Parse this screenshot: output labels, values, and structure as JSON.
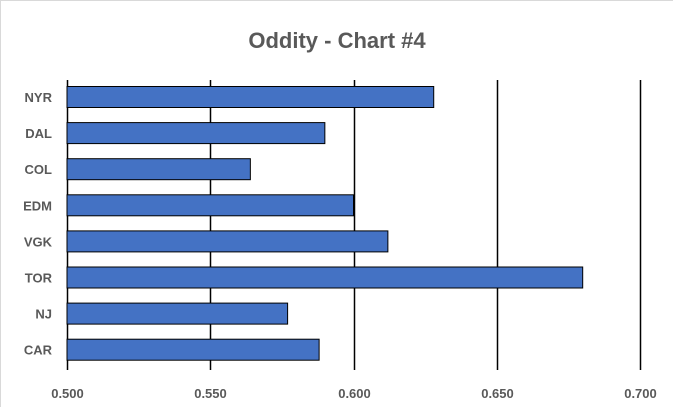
{
  "chart_data": {
    "type": "bar",
    "orientation": "horizontal",
    "title": "Oddity - Chart #4",
    "categories": [
      "NYR",
      "DAL",
      "COL",
      "EDM",
      "VGK",
      "TOR",
      "NJ",
      "CAR"
    ],
    "values": [
      0.628,
      0.59,
      0.564,
      0.6,
      0.612,
      0.68,
      0.577,
      0.588
    ],
    "xlim": [
      0.5,
      0.7
    ],
    "x_ticks": [
      "0.500",
      "0.550",
      "0.600",
      "0.650",
      "0.700"
    ],
    "grid": "vertical major gridlines",
    "legend": "none",
    "bar_color": "#4472c4",
    "bar_outline_color": "#000000",
    "gridline_color": "#000000"
  }
}
